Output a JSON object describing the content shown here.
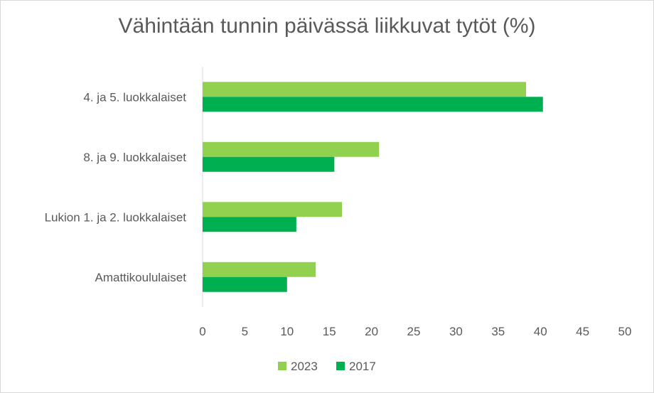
{
  "chart_data": {
    "type": "bar",
    "orientation": "horizontal",
    "title": "Vähintään tunnin päivässä liikkuvat tytöt (%)",
    "categories": [
      "4. ja 5. luokkalaiset",
      "8. ja 9. luokkalaiset",
      "Lukion 1. ja 2. luokkalaiset",
      "Amattikoululaiset"
    ],
    "series": [
      {
        "name": "2023",
        "color": "#92d050",
        "values": [
          38.3,
          20.9,
          16.5,
          13.4
        ]
      },
      {
        "name": "2017",
        "color": "#00b050",
        "values": [
          40.3,
          15.6,
          11.1,
          10.0
        ]
      }
    ],
    "xlim": [
      0,
      50
    ],
    "xticks": [
      "0",
      "5",
      "10",
      "15",
      "20",
      "25",
      "30",
      "35",
      "40",
      "45",
      "50"
    ],
    "grid": false,
    "legend_position": "bottom"
  }
}
